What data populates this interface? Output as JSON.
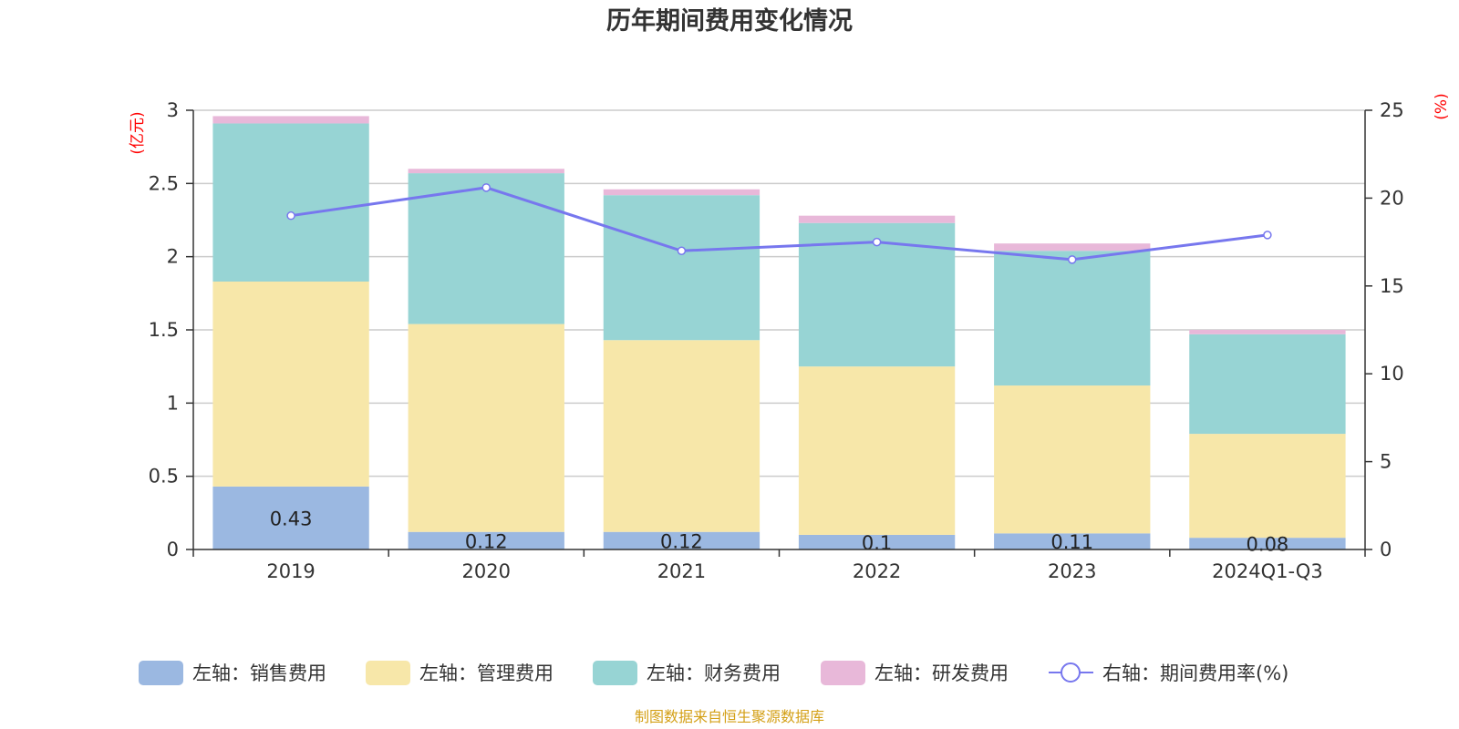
{
  "chart_data": {
    "type": "bar",
    "title": "历年期间费用变化情况",
    "categories": [
      "2019",
      "2020",
      "2021",
      "2022",
      "2023",
      "2024Q1-Q3"
    ],
    "left_axis": {
      "unit_label": "(亿元)",
      "ylim": [
        0,
        3
      ],
      "ticks": [
        "0",
        "0.5",
        "1",
        "1.5",
        "2",
        "2.5",
        "3"
      ]
    },
    "right_axis": {
      "unit_label": "(%)",
      "ylim": [
        0,
        25
      ],
      "ticks": [
        "0",
        "5",
        "10",
        "15",
        "20",
        "25"
      ]
    },
    "series": [
      {
        "name": "左轴：销售费用",
        "axis": "left",
        "kind": "bar",
        "color": "#9bb8e1",
        "values": [
          0.43,
          0.12,
          0.12,
          0.1,
          0.11,
          0.08
        ],
        "labels": [
          "0.43",
          "0.12",
          "0.12",
          "0.1",
          "0.11",
          "0.08"
        ]
      },
      {
        "name": "左轴：管理费用",
        "axis": "left",
        "kind": "bar",
        "color": "#f7e7a9",
        "values": [
          1.4,
          1.42,
          1.31,
          1.15,
          1.01,
          0.71
        ]
      },
      {
        "name": "左轴：财务费用",
        "axis": "left",
        "kind": "bar",
        "color": "#97d4d4",
        "values": [
          1.08,
          1.03,
          0.99,
          0.98,
          0.92,
          0.68
        ]
      },
      {
        "name": "左轴：研发费用",
        "axis": "left",
        "kind": "bar",
        "color": "#e8b8d9",
        "values": [
          0.05,
          0.03,
          0.04,
          0.05,
          0.05,
          0.03
        ]
      },
      {
        "name": "右轴：期间费用率(%)",
        "axis": "right",
        "kind": "line",
        "color": "#7777ee",
        "values": [
          19.0,
          20.6,
          17.0,
          17.5,
          16.5,
          17.9
        ]
      }
    ],
    "grid": true,
    "legend_position": "bottom"
  },
  "source_note": "制图数据来自恒生聚源数据库"
}
